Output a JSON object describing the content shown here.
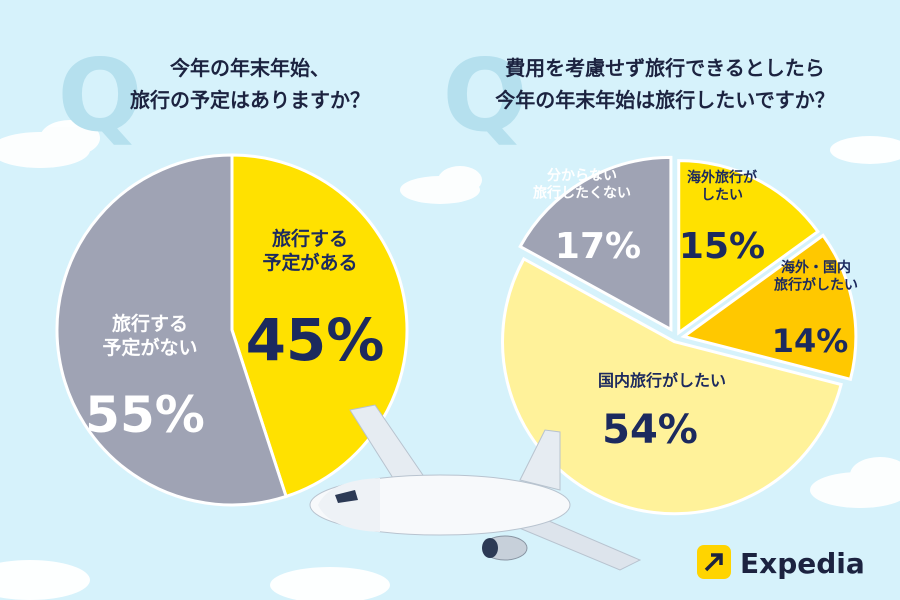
{
  "chart_data": [
    {
      "type": "pie",
      "question_mark": "Q",
      "title": "今年の年末年始、\n旅行の予定はありますか？",
      "categories": [
        "旅行する\n予定がある",
        "旅行する\n予定がない"
      ],
      "values": [
        45,
        55
      ],
      "value_labels": [
        "45%",
        "55%"
      ],
      "colors": [
        "#ffe100",
        "#9fa3b4"
      ]
    },
    {
      "type": "pie",
      "question_mark": "Q",
      "title": "費用を考慮せず旅行できるとしたら\n今年の年末年始は旅行したいですか？",
      "categories": [
        "海外旅行が\nしたい",
        "海外・国内\n旅行がしたい",
        "国内旅行がしたい",
        "分からない\n旅行したくない"
      ],
      "values": [
        15,
        14,
        54,
        17
      ],
      "value_labels": [
        "15%",
        "14%",
        "54%",
        "17%"
      ],
      "colors": [
        "#ffe100",
        "#ffc800",
        "#fff29a",
        "#9fa3b4"
      ]
    }
  ],
  "logo": "Expedia"
}
